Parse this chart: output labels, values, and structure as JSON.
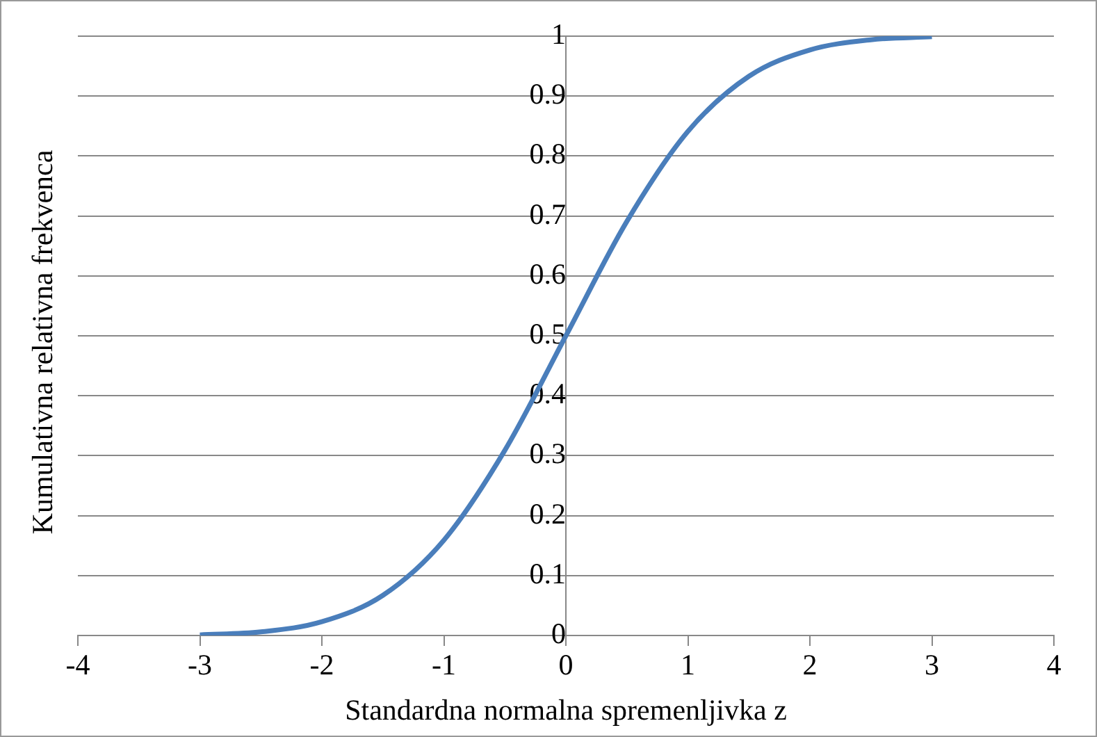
{
  "chart_data": {
    "type": "line",
    "xlabel": "Standardna normalna spremenljivka z",
    "ylabel": "Kumulativna relativna frekvenca",
    "x": [
      -3,
      -2.5,
      -2,
      -1.5,
      -1,
      -0.5,
      0,
      0.5,
      1,
      1.5,
      2,
      2.5,
      3
    ],
    "series": [
      {
        "color": "#4a7ebb",
        "values": [
          0.001,
          0.006,
          0.023,
          0.067,
          0.159,
          0.309,
          0.5,
          0.691,
          0.841,
          0.933,
          0.977,
          0.994,
          0.999
        ]
      }
    ],
    "xlim": [
      -4,
      4
    ],
    "xticks": [
      -4,
      -3,
      -2,
      -1,
      0,
      1,
      2,
      3,
      4
    ],
    "ylim": [
      0,
      1
    ],
    "yticks": [
      0,
      0.1,
      0.2,
      0.3,
      0.4,
      0.5,
      0.6,
      0.7,
      0.8,
      0.9,
      1
    ],
    "grid": "y",
    "legend": false,
    "marker": "none",
    "line_style": "solid"
  }
}
